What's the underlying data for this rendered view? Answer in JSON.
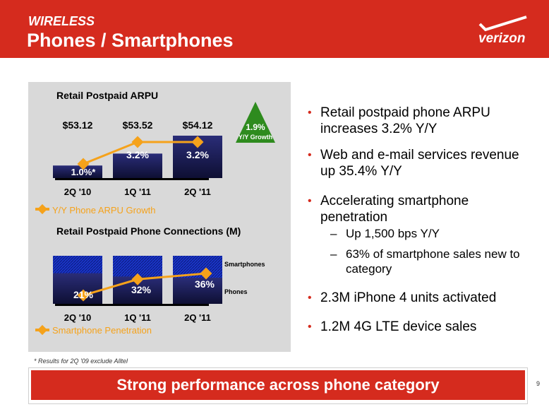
{
  "header": {
    "subtitle": "WIRELESS",
    "title": "Phones / Smartphones",
    "logo_text": "verizon"
  },
  "chart_data": [
    {
      "type": "bar",
      "title": "Retail Postpaid ARPU",
      "categories": [
        "2Q '10",
        "1Q '11",
        "2Q '11"
      ],
      "values": [
        53.12,
        53.52,
        54.12
      ],
      "value_labels": [
        "$53.12",
        "$53.52",
        "$54.12"
      ],
      "line_series": {
        "name": "Y/Y Phone ARPU Growth",
        "values": [
          1.0,
          3.2,
          3.2
        ],
        "labels": [
          "1.0%*",
          "3.2%",
          "3.2%"
        ]
      },
      "callout": {
        "value": "1.9%",
        "label": "Y/Y Growth"
      }
    },
    {
      "type": "bar",
      "title": "Retail Postpaid Phone Connections (M)",
      "categories": [
        "2Q '10",
        "1Q '11",
        "2Q '11"
      ],
      "series": [
        {
          "name": "Smartphones"
        },
        {
          "name": "Phones"
        }
      ],
      "line_series": {
        "name": "Smartphone Penetration",
        "values": [
          21,
          32,
          36
        ],
        "labels": [
          "21%",
          "32%",
          "36%"
        ]
      }
    }
  ],
  "bullets": [
    "Retail postpaid phone ARPU increases 3.2% Y/Y",
    "Web and e-mail services revenue up 35.4% Y/Y",
    "Accelerating smartphone penetration",
    "2.3M iPhone 4 units activated",
    "1.2M 4G LTE device sales"
  ],
  "sub_bullets": [
    "Up 1,500 bps Y/Y",
    "63% of smartphone sales new to category"
  ],
  "footnote": "* Results for 2Q '09 exclude Alltel",
  "banner": "Strong performance across phone category",
  "page_number": "9",
  "colors": {
    "brand_red": "#d52b1e",
    "bar_navy": "#1b1d5a",
    "line_orange": "#f5a21b",
    "callout_green": "#2e8b1e"
  }
}
